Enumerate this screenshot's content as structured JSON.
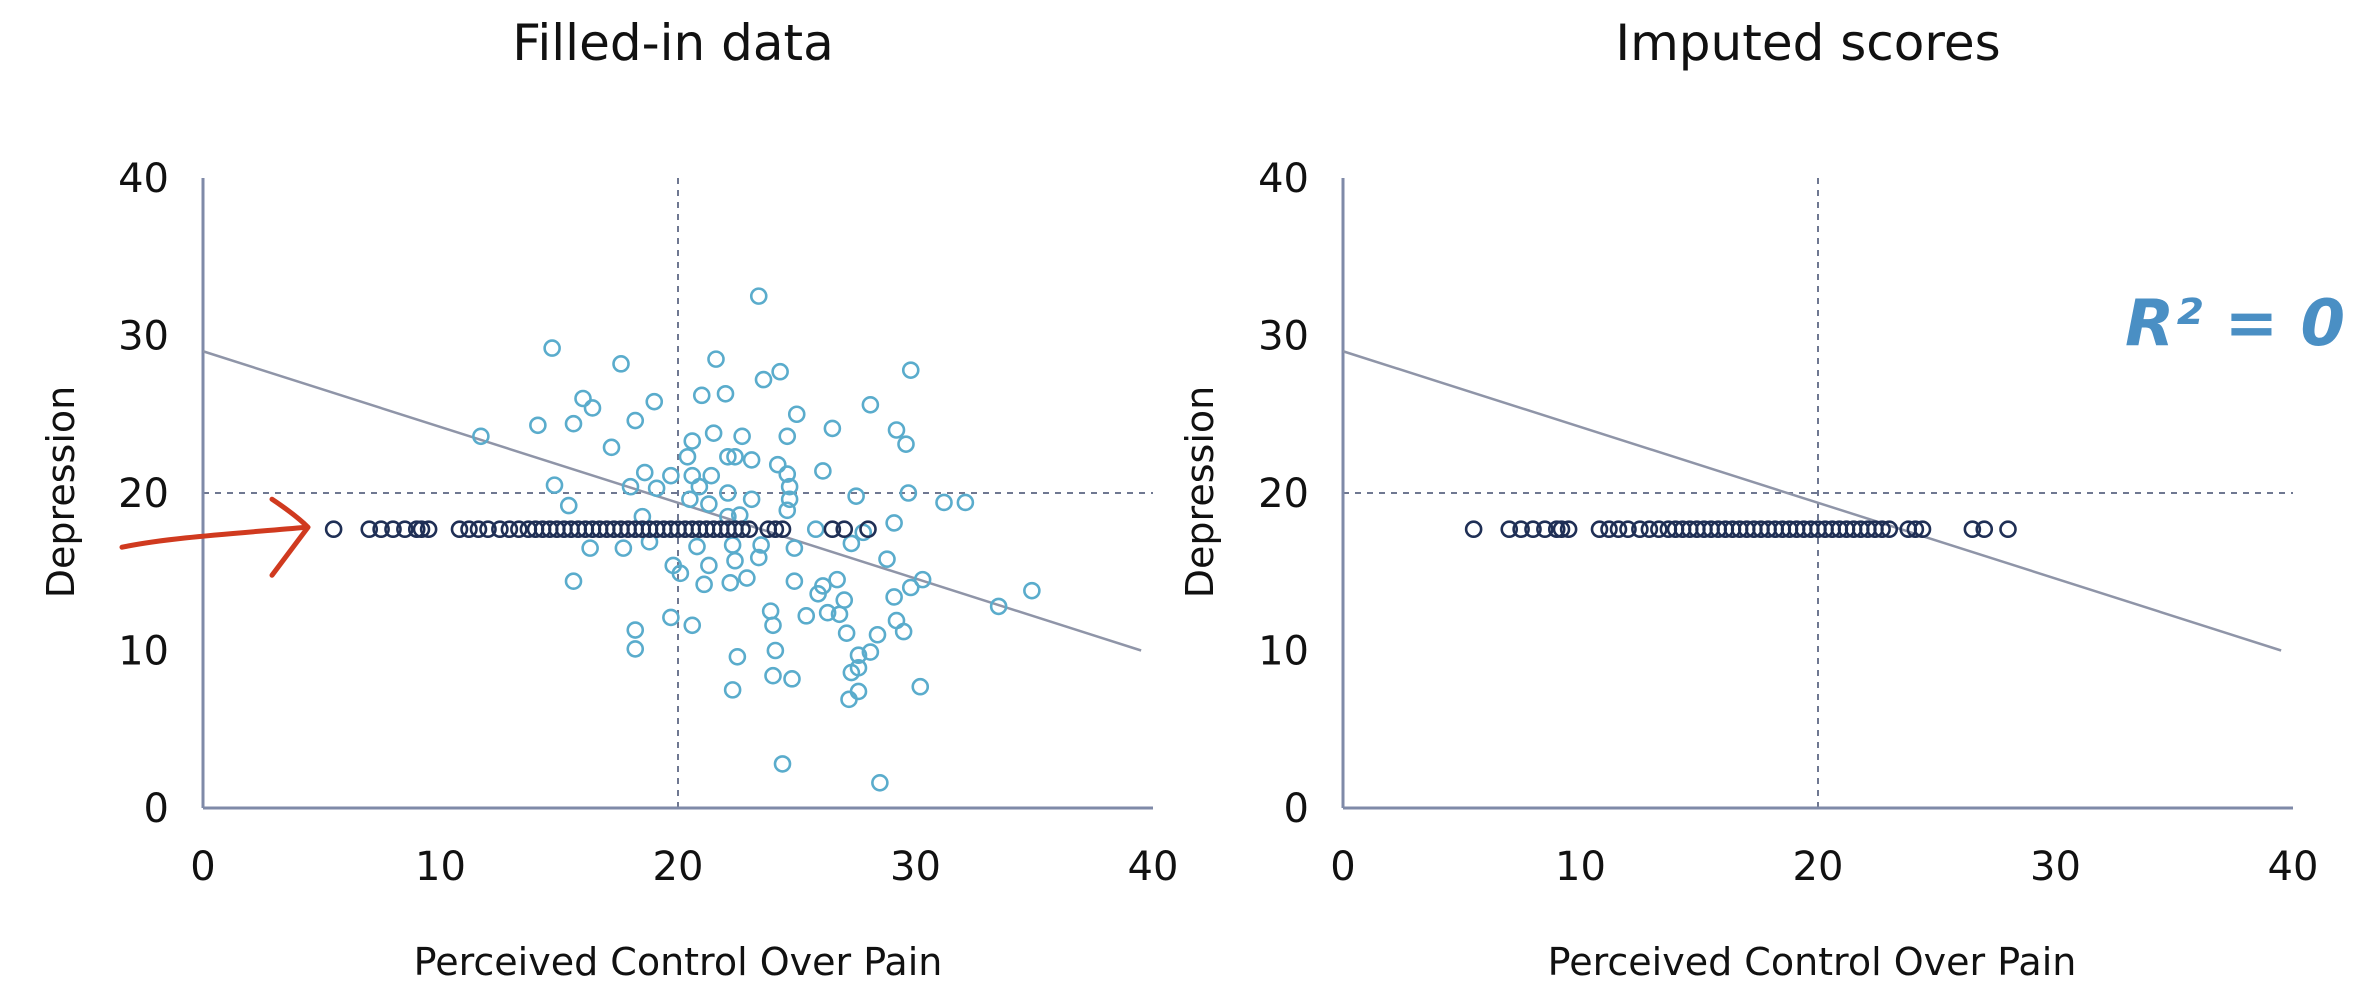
{
  "chart_data": [
    {
      "type": "scatter",
      "title": "Filled-in data",
      "xlabel": "Perceived Control Over Pain",
      "ylabel": "Depression",
      "xlim": [
        0,
        40
      ],
      "ylim": [
        0,
        40
      ],
      "xticks": [
        "0",
        "10",
        "20",
        "30",
        "40"
      ],
      "yticks": [
        "0",
        "10",
        "20",
        "30",
        "40"
      ],
      "reference_lines": {
        "x": 20,
        "y": 20,
        "style": "dashed"
      },
      "regression_line": {
        "x": [
          0,
          39.5
        ],
        "y": [
          29.0,
          10.0
        ]
      },
      "colors": {
        "observed": "#5aaccc",
        "imputed": "#1f2f55",
        "line": "#8f95a8",
        "arrow": "#d03a1f"
      },
      "series": [
        {
          "role": "observed",
          "points": [
            [
              23.4,
              32.5
            ],
            [
              14.7,
              29.2
            ],
            [
              17.6,
              28.2
            ],
            [
              21.6,
              28.5
            ],
            [
              29.8,
              27.8
            ],
            [
              24.3,
              27.7
            ],
            [
              23.6,
              27.2
            ],
            [
              16.0,
              26.0
            ],
            [
              16.4,
              25.4
            ],
            [
              21.0,
              26.2
            ],
            [
              22.0,
              26.3
            ],
            [
              19.0,
              25.8
            ],
            [
              28.1,
              25.6
            ],
            [
              25.0,
              25.0
            ],
            [
              14.1,
              24.3
            ],
            [
              15.6,
              24.4
            ],
            [
              18.2,
              24.6
            ],
            [
              26.5,
              24.1
            ],
            [
              29.2,
              24.0
            ],
            [
              11.7,
              23.6
            ],
            [
              20.6,
              23.3
            ],
            [
              21.5,
              23.8
            ],
            [
              22.7,
              23.6
            ],
            [
              24.6,
              23.6
            ],
            [
              29.6,
              23.1
            ],
            [
              17.2,
              22.9
            ],
            [
              20.4,
              22.3
            ],
            [
              22.1,
              22.3
            ],
            [
              22.4,
              22.3
            ],
            [
              23.1,
              22.1
            ],
            [
              24.2,
              21.8
            ],
            [
              18.6,
              21.3
            ],
            [
              19.7,
              21.1
            ],
            [
              20.6,
              21.1
            ],
            [
              21.4,
              21.1
            ],
            [
              24.6,
              21.2
            ],
            [
              26.1,
              21.4
            ],
            [
              14.8,
              20.5
            ],
            [
              18.0,
              20.4
            ],
            [
              19.1,
              20.3
            ],
            [
              20.9,
              20.4
            ],
            [
              22.1,
              20.0
            ],
            [
              24.7,
              20.4
            ],
            [
              29.7,
              20.0
            ],
            [
              15.4,
              19.2
            ],
            [
              20.5,
              19.6
            ],
            [
              21.3,
              19.3
            ],
            [
              23.1,
              19.6
            ],
            [
              24.7,
              19.6
            ],
            [
              27.5,
              19.8
            ],
            [
              31.2,
              19.4
            ],
            [
              32.1,
              19.4
            ],
            [
              18.5,
              18.5
            ],
            [
              22.1,
              18.5
            ],
            [
              22.6,
              18.6
            ],
            [
              24.6,
              18.9
            ],
            [
              29.1,
              18.1
            ],
            [
              16.3,
              16.5
            ],
            [
              17.7,
              16.5
            ],
            [
              18.8,
              16.9
            ],
            [
              20.8,
              16.6
            ],
            [
              22.3,
              16.7
            ],
            [
              23.5,
              16.7
            ],
            [
              24.9,
              16.5
            ],
            [
              27.3,
              16.8
            ],
            [
              19.8,
              15.4
            ],
            [
              21.3,
              15.4
            ],
            [
              22.4,
              15.7
            ],
            [
              23.4,
              15.9
            ],
            [
              28.8,
              15.8
            ],
            [
              15.6,
              14.4
            ],
            [
              20.1,
              14.9
            ],
            [
              21.1,
              14.2
            ],
            [
              22.2,
              14.3
            ],
            [
              22.9,
              14.6
            ],
            [
              24.9,
              14.4
            ],
            [
              26.1,
              14.1
            ],
            [
              26.7,
              14.5
            ],
            [
              29.8,
              14.0
            ],
            [
              30.3,
              14.5
            ],
            [
              34.9,
              13.8
            ],
            [
              25.9,
              13.6
            ],
            [
              27.0,
              13.2
            ],
            [
              29.1,
              13.4
            ],
            [
              33.5,
              12.8
            ],
            [
              19.7,
              12.1
            ],
            [
              23.9,
              12.5
            ],
            [
              25.4,
              12.2
            ],
            [
              26.3,
              12.4
            ],
            [
              26.8,
              12.3
            ],
            [
              29.2,
              11.9
            ],
            [
              24.0,
              11.6
            ],
            [
              20.6,
              11.6
            ],
            [
              18.2,
              11.3
            ],
            [
              28.4,
              11.0
            ],
            [
              27.1,
              11.1
            ],
            [
              29.5,
              11.2
            ],
            [
              18.2,
              10.1
            ],
            [
              22.5,
              9.6
            ],
            [
              24.1,
              10.0
            ],
            [
              27.6,
              9.7
            ],
            [
              28.1,
              9.9
            ],
            [
              24.0,
              8.4
            ],
            [
              24.8,
              8.2
            ],
            [
              27.3,
              8.6
            ],
            [
              27.6,
              8.9
            ],
            [
              22.3,
              7.5
            ],
            [
              27.6,
              7.4
            ],
            [
              30.2,
              7.7
            ],
            [
              27.2,
              6.9
            ],
            [
              24.4,
              2.8
            ],
            [
              28.5,
              1.6
            ],
            [
              25.8,
              17.7
            ],
            [
              27.8,
              17.5
            ]
          ]
        },
        {
          "role": "imputed",
          "y": 17.7,
          "x": [
            5.5,
            7.0,
            7.5,
            8.0,
            8.5,
            9.0,
            9.2,
            9.5,
            10.8,
            11.2,
            11.6,
            12.0,
            12.5,
            12.9,
            13.3,
            13.7,
            14.0,
            14.3,
            14.6,
            14.9,
            15.2,
            15.5,
            15.8,
            16.1,
            16.4,
            16.7,
            17.0,
            17.3,
            17.6,
            17.9,
            18.2,
            18.5,
            18.8,
            19.1,
            19.4,
            19.7,
            20.0,
            20.3,
            20.6,
            20.9,
            21.2,
            21.5,
            21.8,
            22.1,
            22.4,
            22.7,
            23.0,
            23.8,
            24.1,
            24.4,
            26.5,
            27.0,
            28.0
          ]
        }
      ]
    },
    {
      "type": "scatter",
      "title": "Imputed scores",
      "xlabel": "Perceived Control Over Pain",
      "ylabel": "Depression",
      "xlim": [
        0,
        40
      ],
      "ylim": [
        0,
        40
      ],
      "xticks": [
        "0",
        "10",
        "20",
        "30",
        "40"
      ],
      "yticks": [
        "0",
        "10",
        "20",
        "30",
        "40"
      ],
      "reference_lines": {
        "x": 20,
        "y": 20,
        "style": "dashed"
      },
      "regression_line": {
        "x": [
          0,
          39.5
        ],
        "y": [
          29.0,
          10.0
        ]
      },
      "annotation": {
        "text": "R² = 0",
        "placement": "top-right"
      },
      "colors": {
        "imputed": "#1f2f55",
        "line": "#8f95a8"
      },
      "series": [
        {
          "role": "imputed",
          "y": 17.7,
          "x": [
            5.5,
            7.0,
            7.5,
            8.0,
            8.5,
            9.0,
            9.2,
            9.5,
            10.8,
            11.2,
            11.6,
            12.0,
            12.5,
            12.9,
            13.3,
            13.7,
            14.0,
            14.3,
            14.6,
            14.9,
            15.2,
            15.5,
            15.8,
            16.1,
            16.4,
            16.7,
            17.0,
            17.3,
            17.6,
            17.9,
            18.2,
            18.5,
            18.8,
            19.1,
            19.4,
            19.7,
            20.0,
            20.3,
            20.6,
            20.9,
            21.2,
            21.5,
            21.8,
            22.1,
            22.4,
            22.7,
            23.0,
            23.8,
            24.1,
            24.4,
            26.5,
            27.0,
            28.0
          ]
        }
      ]
    }
  ]
}
